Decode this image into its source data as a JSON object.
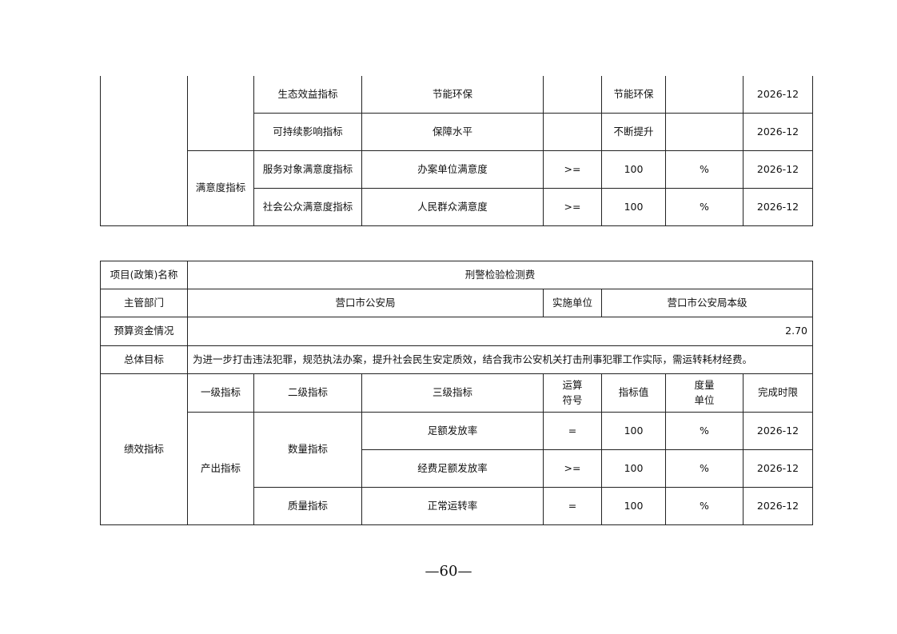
{
  "top_table": {
    "rows": [
      {
        "level3": "生态效益指标",
        "indicator": "节能环保",
        "op": "",
        "value": "节能环保",
        "unit": "",
        "deadline": "2026-12"
      },
      {
        "level3": "可持续影响指标",
        "indicator": "保障水平",
        "op": "",
        "value": "不断提升",
        "unit": "",
        "deadline": "2026-12"
      },
      {
        "level3": "服务对象满意度指标",
        "indicator": "办案单位满意度",
        "op": ">=",
        "value": "100",
        "unit": "%",
        "deadline": "2026-12"
      },
      {
        "level3": "社会公众满意度指标",
        "indicator": "人民群众满意度",
        "op": ">=",
        "value": "100",
        "unit": "%",
        "deadline": "2026-12"
      }
    ],
    "level1_satisfaction": "满意度指标"
  },
  "project": {
    "name_label": "项目(政策)名称",
    "name": "刑警检验检测费",
    "dept_label": "主管部门",
    "dept": "营口市公安局",
    "impl_label": "实施单位",
    "impl": "营口市公安局本级",
    "budget_label": "预算资金情况",
    "budget": "2.70",
    "goal_label": "总体目标",
    "goal": "为进一步打击违法犯罪，规范执法办案，提升社会民生安定质效，结合我市公安机关打击刑事犯罪工作实际，需运转耗材经费。",
    "perf_label": "绩效指标",
    "headers": [
      "一级指标",
      "二级指标",
      "三级指标",
      "运算符号",
      "指标值",
      "度量单位",
      "完成时限"
    ],
    "level1": "产出指标",
    "quantity": "数量指标",
    "quality": "质量指标",
    "rows": [
      {
        "indicator": "足额发放率",
        "op": "=",
        "value": "100",
        "unit": "%",
        "deadline": "2026-12"
      },
      {
        "indicator": "经费足额发放率",
        "op": ">=",
        "value": "100",
        "unit": "%",
        "deadline": "2026-12"
      },
      {
        "indicator": "正常运转率",
        "op": "=",
        "value": "100",
        "unit": "%",
        "deadline": "2026-12"
      }
    ]
  },
  "page_number": "—60—"
}
